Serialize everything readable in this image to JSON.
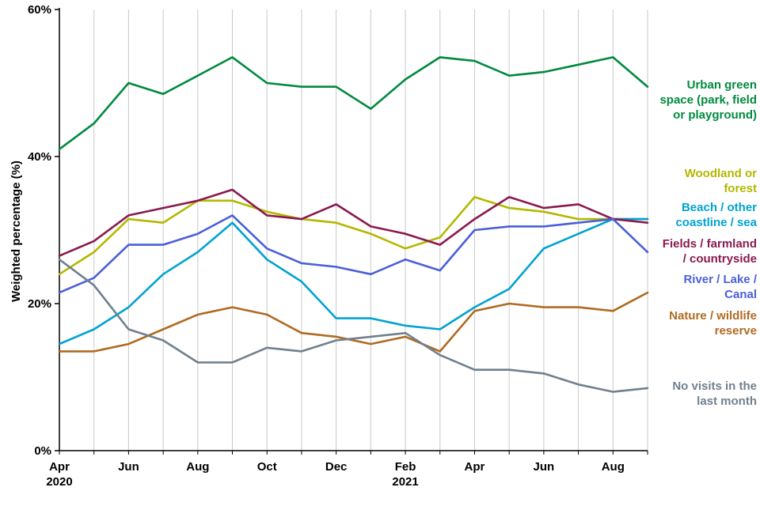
{
  "chart_data": {
    "type": "line",
    "title": "",
    "ylabel": "Weighted percentage (%)",
    "ylim": [
      0,
      60
    ],
    "grid": "vertical-only",
    "legend_position": "right, colored text labels",
    "yticks": [
      {
        "value": 0,
        "label": "0%"
      },
      {
        "value": 20,
        "label": "20%"
      },
      {
        "value": 40,
        "label": "40%"
      },
      {
        "value": 60,
        "label": "60%"
      }
    ],
    "months": [
      "Apr 2020",
      "May 2020",
      "Jun 2020",
      "Jul 2020",
      "Aug 2020",
      "Sep 2020",
      "Oct 2020",
      "Nov 2020",
      "Dec 2020",
      "Jan 2021",
      "Feb 2021",
      "Mar 2021",
      "Apr 2021",
      "May 2021",
      "Jun 2021",
      "Jul 2021",
      "Aug 2021",
      "Sep 2021"
    ],
    "xticks": [
      {
        "index": 0,
        "line1": "Apr",
        "line2": "2020"
      },
      {
        "index": 2,
        "line1": "Jun"
      },
      {
        "index": 4,
        "line1": "Aug"
      },
      {
        "index": 6,
        "line1": "Oct"
      },
      {
        "index": 8,
        "line1": "Dec"
      },
      {
        "index": 10,
        "line1": "Feb",
        "line2": "2021"
      },
      {
        "index": 12,
        "line1": "Apr"
      },
      {
        "index": 14,
        "line1": "Jun"
      },
      {
        "index": 16,
        "line1": "Aug"
      }
    ],
    "series": [
      {
        "id": "urban-green-space",
        "name": "Urban green space (park, field or playground)",
        "legend_label": "Urban green\nspace (park, field\nor playground)",
        "color": "#008a3e",
        "values": [
          41,
          44.5,
          50,
          48.5,
          51,
          53.5,
          50,
          49.5,
          49.5,
          46.5,
          50.5,
          53.5,
          53,
          51,
          51.5,
          52.5,
          53.5,
          49.5
        ]
      },
      {
        "id": "woodland-or-forest",
        "name": "Woodland or forest",
        "legend_label": "Woodland or\nforest",
        "color": "#b3b800",
        "values": [
          24,
          27,
          31.5,
          31,
          34,
          34,
          32.5,
          31.5,
          31,
          29.5,
          27.5,
          29,
          34.5,
          33,
          32.5,
          31.5,
          31.5,
          31.5
        ]
      },
      {
        "id": "beach-other-coastline-sea",
        "name": "Beach / other coastline / sea",
        "legend_label": "Beach / other\ncoastline / sea",
        "color": "#00a3d1",
        "values": [
          14.5,
          16.5,
          19.5,
          24,
          27,
          31,
          26,
          23,
          18,
          18,
          17,
          16.5,
          19.5,
          22,
          27.5,
          29.5,
          31.5,
          31.5
        ]
      },
      {
        "id": "fields-farmland-countryside",
        "name": "Fields / farmland / countryside",
        "legend_label": "Fields / farmland\n/ countryside",
        "color": "#8a1a50",
        "values": [
          26.5,
          28.5,
          32,
          33,
          34,
          35.5,
          32,
          31.5,
          33.5,
          30.5,
          29.5,
          28,
          31.5,
          34.5,
          33,
          33.5,
          31.5,
          31
        ]
      },
      {
        "id": "river-lake-canal",
        "name": "River / Lake / Canal",
        "legend_label": "River / Lake /\nCanal",
        "color": "#4a5fd9",
        "values": [
          21.5,
          23.5,
          28,
          28,
          29.5,
          32,
          27.5,
          25.5,
          25,
          24,
          26,
          24.5,
          30,
          30.5,
          30.5,
          31,
          31.5,
          27
        ]
      },
      {
        "id": "nature-wildlife-reserve",
        "name": "Nature / wildlife reserve",
        "legend_label": "Nature / wildlife\nreserve",
        "color": "#b06a22",
        "values": [
          13.5,
          13.5,
          14.5,
          16.5,
          18.5,
          19.5,
          18.5,
          16,
          15.5,
          14.5,
          15.5,
          13.5,
          19,
          20,
          19.5,
          19.5,
          19,
          21.5
        ]
      },
      {
        "id": "no-visits-last-month",
        "name": "No visits in the last month",
        "legend_label": "No visits in the\nlast month",
        "color": "#71808e",
        "values": [
          26,
          22.5,
          16.5,
          15,
          12,
          12,
          14,
          13.5,
          15,
          15.5,
          16,
          13,
          11,
          11,
          10.5,
          9,
          8,
          8.5
        ]
      }
    ]
  }
}
